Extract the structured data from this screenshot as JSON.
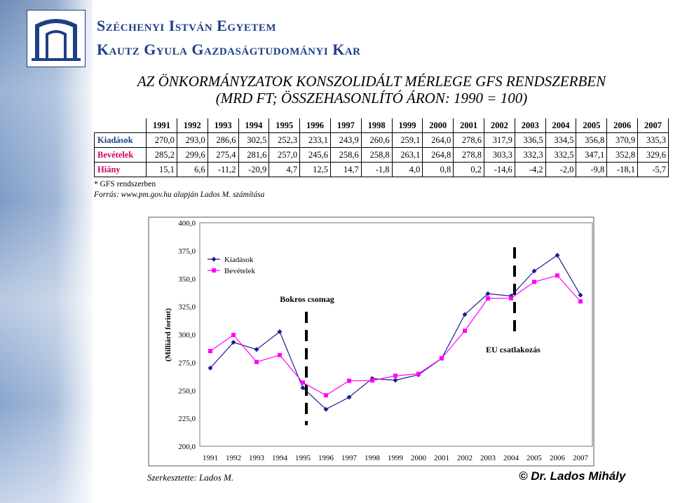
{
  "header": {
    "university": "Széchenyi István Egyetem",
    "faculty": "Kautz Gyula Gazdaságtudományi Kar"
  },
  "title_line1": "AZ ÖNKORMÁNYZATOK KONSZOLIDÁLT MÉRLEGE GFS RENDSZERBEN",
  "title_line2": "(MRD FT; ÖSSZEHASONLÍTÓ ÁRON: 1990 = 100)",
  "table": {
    "years": [
      "1991",
      "1992",
      "1993",
      "1994",
      "1995",
      "1996",
      "1997",
      "1998",
      "1999",
      "2000",
      "2001",
      "2002",
      "2003",
      "2004",
      "2005",
      "2006",
      "2007"
    ],
    "rows": [
      {
        "label": "Kiadások",
        "values": [
          "270,0",
          "293,0",
          "286,6",
          "302,5",
          "252,3",
          "233,1",
          "243,9",
          "260,6",
          "259,1",
          "264,0",
          "278,6",
          "317,9",
          "336,5",
          "334,5",
          "356,8",
          "370,9",
          "335,3"
        ]
      },
      {
        "label": "Bevételek",
        "values": [
          "285,2",
          "299,6",
          "275,4",
          "281,6",
          "257,0",
          "245,6",
          "258,6",
          "258,8",
          "263,1",
          "264,8",
          "278,8",
          "303,3",
          "332,3",
          "332,5",
          "347,1",
          "352,8",
          "329,6"
        ]
      },
      {
        "label": "Hiány",
        "values": [
          "15,1",
          "6,6",
          "-11,2",
          "-20,9",
          "4,7",
          "12,5",
          "14,7",
          "-1,8",
          "4,0",
          "0,8",
          "0,2",
          "-14,6",
          "-4,2",
          "-2,0",
          "-9,8",
          "-18,1",
          "-5,7"
        ]
      }
    ]
  },
  "note": "* GFS rendszerben",
  "source": "Forrás: www.pm.gov.hu alapján Lados M. számítása",
  "editor": "Szerkesztette: Lados M.",
  "copyright": "© Dr. Lados Mihály",
  "colors": {
    "kiadasok": "#1c1c8c",
    "bevetelek": "#ff00ff",
    "brand": "#1c3f86"
  },
  "chart_data": {
    "type": "line",
    "x": [
      "1991",
      "1992",
      "1993",
      "1994",
      "1995",
      "1996",
      "1997",
      "1998",
      "1999",
      "2000",
      "2001",
      "2002",
      "2003",
      "2004",
      "2005",
      "2006",
      "2007"
    ],
    "series": [
      {
        "name": "Kiadások",
        "values": [
          270.0,
          293.0,
          286.6,
          302.5,
          252.3,
          233.1,
          243.9,
          260.6,
          259.1,
          264.0,
          278.6,
          317.9,
          336.5,
          334.5,
          356.8,
          370.9,
          335.3
        ]
      },
      {
        "name": "Bevételek",
        "values": [
          285.2,
          299.6,
          275.4,
          281.6,
          257.0,
          245.6,
          258.6,
          258.8,
          263.1,
          264.8,
          278.8,
          303.3,
          332.3,
          332.5,
          347.1,
          352.8,
          329.6
        ]
      }
    ],
    "ylabel": "(Milliárd forint)",
    "ylim": [
      200,
      400
    ],
    "yticks": [
      "200,0",
      "225,0",
      "250,0",
      "275,0",
      "300,0",
      "325,0",
      "350,0",
      "375,0",
      "400,0"
    ],
    "legend_position": "top-left",
    "annotations": [
      {
        "text": "Bokros csomag",
        "year": "1995"
      },
      {
        "text": "EU csatlakozás",
        "year": "2004"
      }
    ]
  }
}
